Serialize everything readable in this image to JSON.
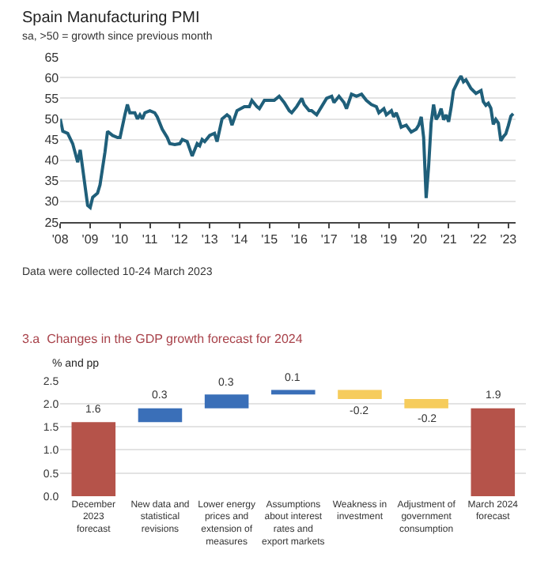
{
  "chart_data": [
    {
      "type": "line",
      "title": "Spain Manufacturing PMI",
      "subtitle": "sa, >50 = growth since previous month",
      "annotations": [
        "Data were collected 10-24 March 2023"
      ],
      "x": [
        "2008-01",
        "2008-02",
        "2008-04",
        "2008-06",
        "2008-08",
        "2008-09",
        "2008-10",
        "2008-12",
        "2009-01",
        "2009-02",
        "2009-04",
        "2009-05",
        "2009-07",
        "2009-08",
        "2009-10",
        "2009-12",
        "2010-01",
        "2010-03",
        "2010-04",
        "2010-05",
        "2010-07",
        "2010-08",
        "2010-09",
        "2010-10",
        "2010-11",
        "2011-01",
        "2011-03",
        "2011-04",
        "2011-06",
        "2011-08",
        "2011-09",
        "2011-11",
        "2012-01",
        "2012-02",
        "2012-04",
        "2012-06",
        "2012-08",
        "2012-09",
        "2012-10",
        "2012-11",
        "2013-01",
        "2013-03",
        "2013-04",
        "2013-06",
        "2013-08",
        "2013-09",
        "2013-10",
        "2013-12",
        "2014-03",
        "2014-05",
        "2014-06",
        "2014-08",
        "2014-09",
        "2014-11",
        "2015-01",
        "2015-03",
        "2015-05",
        "2015-07",
        "2015-09",
        "2015-10",
        "2015-12",
        "2016-02",
        "2016-03",
        "2016-05",
        "2016-06",
        "2016-08",
        "2016-10",
        "2016-12",
        "2017-02",
        "2017-03",
        "2017-05",
        "2017-07",
        "2017-08",
        "2017-10",
        "2017-12",
        "2018-02",
        "2018-04",
        "2018-06",
        "2018-08",
        "2018-09",
        "2018-11",
        "2018-12",
        "2019-02",
        "2019-03",
        "2019-04",
        "2019-05",
        "2019-06",
        "2019-08",
        "2019-10",
        "2019-12",
        "2020-01",
        "2020-02",
        "2020-03",
        "2020-04",
        "2020-05",
        "2020-06",
        "2020-07",
        "2020-08",
        "2020-09",
        "2020-10",
        "2020-11",
        "2020-12",
        "2021-01",
        "2021-02",
        "2021-03",
        "2021-05",
        "2021-06",
        "2021-07",
        "2021-08",
        "2021-10",
        "2021-12",
        "2022-02",
        "2022-03",
        "2022-04",
        "2022-05",
        "2022-06",
        "2022-07",
        "2022-08",
        "2022-09",
        "2022-10",
        "2022-11",
        "2022-12",
        "2023-01",
        "2023-02",
        "2023-03"
      ],
      "series": [
        {
          "color": "#1f5f7a",
          "values": [
            50,
            47,
            46.5,
            44,
            39.5,
            42.5,
            38,
            29,
            28.5,
            31,
            32,
            34,
            42,
            47,
            46,
            45.5,
            45.5,
            51,
            53.5,
            51.5,
            51.5,
            50,
            51,
            50,
            51.5,
            52,
            51.5,
            50.5,
            47.5,
            45.5,
            44,
            43.8,
            44,
            45,
            44.5,
            41,
            44,
            43.5,
            45,
            44.5,
            46,
            46.5,
            44.5,
            50,
            51,
            50.5,
            48.5,
            52,
            53,
            53,
            54.5,
            53,
            52.5,
            54.5,
            54.5,
            54.5,
            55.5,
            54,
            52,
            51.5,
            53,
            55,
            53.5,
            52,
            52,
            51,
            53,
            55,
            55.5,
            54,
            55.5,
            54,
            52.5,
            56,
            55.5,
            56,
            54.5,
            53.5,
            53,
            51.5,
            52.5,
            51,
            52,
            50.5,
            51.5,
            50,
            48,
            48.5,
            46.8,
            47.5,
            48.5,
            50.5,
            45.5,
            30.8,
            38.5,
            49,
            53.5,
            49.9,
            50.8,
            52.5,
            49.8,
            51,
            49.3,
            52.9,
            56.9,
            59.4,
            60.4,
            59,
            59.5,
            57.4,
            56.2,
            56.9,
            54.2,
            53.3,
            53.8,
            52.6,
            48.7,
            49.9,
            49,
            44.7,
            45.7,
            46.4,
            48.4,
            50.7,
            51.3
          ]
        }
      ],
      "xlim": [
        "2008-01",
        "2023-04"
      ],
      "xticks": [
        {
          "value": "2008-01",
          "label": "'08"
        },
        {
          "value": "2009-01",
          "label": "'09"
        },
        {
          "value": "2010-01",
          "label": "'10"
        },
        {
          "value": "2011-01",
          "label": "'11"
        },
        {
          "value": "2012-01",
          "label": "'12"
        },
        {
          "value": "2013-01",
          "label": "'13"
        },
        {
          "value": "2014-01",
          "label": "'14"
        },
        {
          "value": "2015-01",
          "label": "'15"
        },
        {
          "value": "2016-01",
          "label": "'16"
        },
        {
          "value": "2017-01",
          "label": "'17"
        },
        {
          "value": "2018-01",
          "label": "'18"
        },
        {
          "value": "2019-01",
          "label": "'19"
        },
        {
          "value": "2020-01",
          "label": "'20"
        },
        {
          "value": "2021-01",
          "label": "'21"
        },
        {
          "value": "2022-01",
          "label": "'22"
        },
        {
          "value": "2023-01",
          "label": "'23"
        }
      ],
      "ylim": [
        25,
        65
      ],
      "yticks": [
        25,
        30,
        35,
        40,
        45,
        50,
        55,
        60,
        65
      ],
      "grid": "y",
      "marker": "none",
      "line_style": "solid"
    },
    {
      "type": "bar",
      "title": "3.a  Changes in the GDP growth forecast for 2024",
      "ylabel": "% and pp",
      "categories": [
        "December\n2023\nforecast",
        "New data and\nstatistical\nrevisions",
        "Lower energy\nprices and\nextension of\nmeasures",
        "Assumptions\nabout interest\nrates and\nexport markets",
        "Weakness in\ninvestment",
        "Adjustment of\ngovernment\nconsumption",
        "March 2024\nforecast"
      ],
      "values": [
        1.6,
        0.3,
        0.3,
        0.1,
        -0.2,
        -0.2,
        1.9
      ],
      "base": [
        0,
        1.6,
        1.9,
        2.2,
        2.3,
        2.1,
        0
      ],
      "colors": [
        "#b5534a",
        "#3a6fb8",
        "#3a6fb8",
        "#3a6fb8",
        "#f6cc5c",
        "#f6cc5c",
        "#b5534a"
      ],
      "ylim": [
        0,
        2.5
      ],
      "yticks": [
        {
          "value": 0,
          "label": "0.0"
        },
        0.5,
        {
          "value": 1,
          "label": "1.0"
        },
        1.5,
        {
          "value": 2,
          "label": "2.0"
        },
        2.5
      ],
      "grid": "y",
      "data_labels": true
    }
  ]
}
